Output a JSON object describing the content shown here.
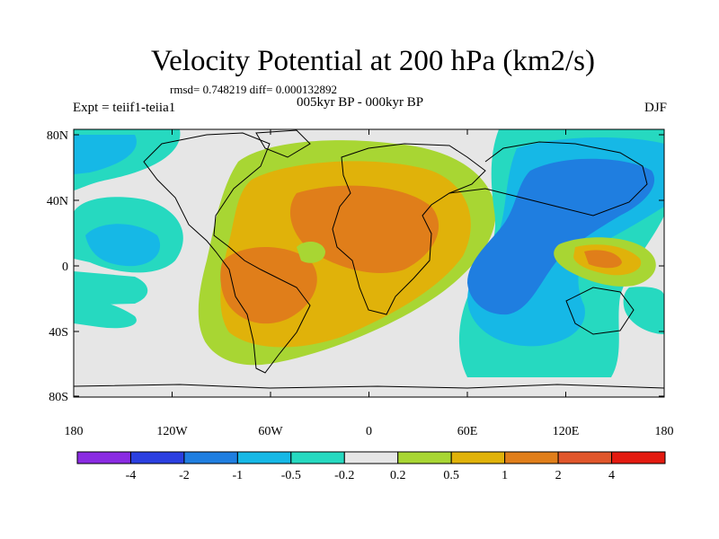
{
  "title": "Velocity Potential at 200 hPa (km2/s)",
  "stats": "rmsd= 0.748219 diff= 0.000132892",
  "subtitle": "005kyr BP - 000kyr BP",
  "left_title": "Expt = teiif1-teiia1",
  "right_title": "DJF",
  "lon_ticks": [
    "180",
    "120W",
    "60W",
    "0",
    "60E",
    "120E",
    "180"
  ],
  "lat_ticks": [
    "80N",
    "40N",
    "0",
    "40S",
    "80S"
  ],
  "colorbar": {
    "colors": [
      "#8a2be2",
      "#2b3fe0",
      "#1f7ee0",
      "#16b8e6",
      "#26d9c0",
      "#e6e6e6",
      "#a8d633",
      "#e0b20a",
      "#e07e1a",
      "#e0562b",
      "#e31a10"
    ],
    "labels": [
      "-4",
      "-2",
      "-1",
      "-0.5",
      "-0.2",
      "0.2",
      "0.5",
      "1",
      "2",
      "4"
    ]
  }
}
